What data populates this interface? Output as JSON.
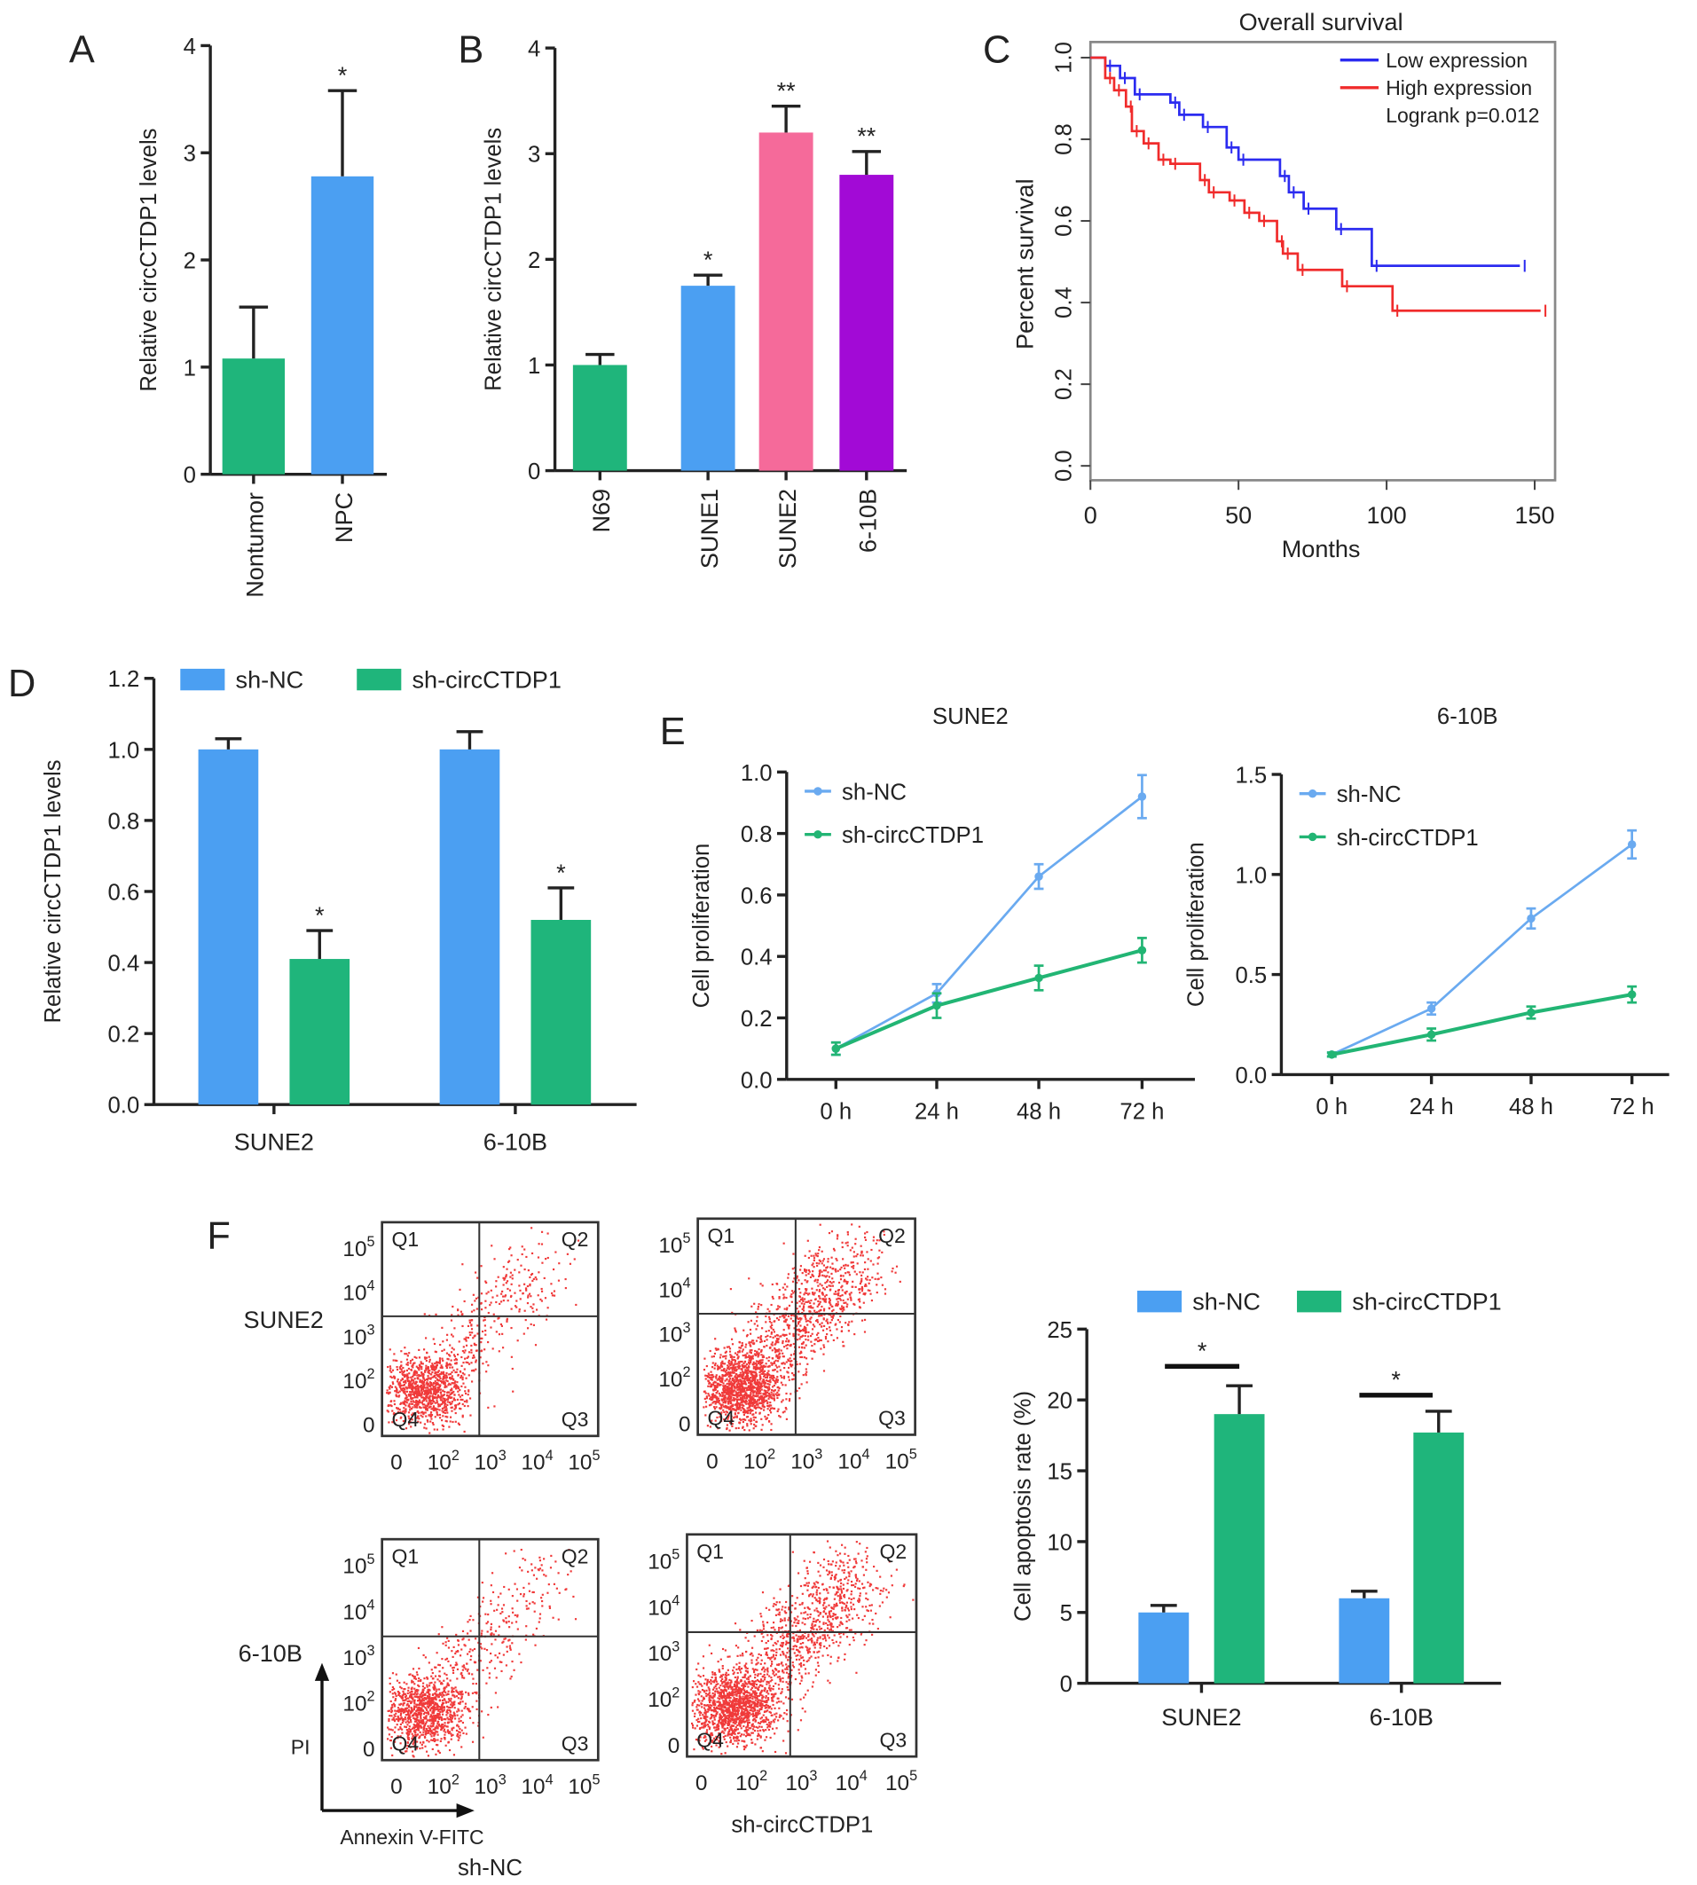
{
  "panel_labels": [
    "A",
    "B",
    "C",
    "D",
    "E",
    "F"
  ],
  "colors": {
    "green": "#1fb57b",
    "blue": "#4b9ff2",
    "pink": "#f56a9a",
    "purple": "#a20ad6",
    "km_low": "#2b2bf0",
    "km_high": "#f02b2b",
    "line_blue": "#6aaaf0",
    "line_green": "#22b574",
    "flow_red": "#f03a3a"
  },
  "chart_data": [
    {
      "id": "A",
      "type": "bar",
      "ylabel": "Relative circCTDP1 levels",
      "ylim": [
        0,
        4
      ],
      "yticks": [
        "0",
        "1",
        "2",
        "3",
        "4"
      ],
      "categories": [
        "Nontumor",
        "NPC"
      ],
      "values": [
        1.08,
        2.78
      ],
      "errors": [
        0.48,
        0.8
      ],
      "annotations": [
        "",
        "*"
      ],
      "colors": [
        "green",
        "blue"
      ]
    },
    {
      "id": "B",
      "type": "bar",
      "ylabel": "Relative circCTDP1 levels",
      "ylim": [
        0,
        4
      ],
      "yticks": [
        "0",
        "1",
        "2",
        "3",
        "4"
      ],
      "categories": [
        "N69",
        "SUNE1",
        "SUNE2",
        "6-10B"
      ],
      "values": [
        1.0,
        1.75,
        3.2,
        2.8
      ],
      "errors": [
        0.1,
        0.1,
        0.25,
        0.22
      ],
      "annotations": [
        "",
        "*",
        "**",
        "**"
      ],
      "colors": [
        "green",
        "blue",
        "pink",
        "purple"
      ]
    },
    {
      "id": "C",
      "type": "line",
      "title": "Overall survival",
      "xlabel": "Months",
      "ylabel": "Percent survival",
      "xlim": [
        0,
        150
      ],
      "ylim": [
        0,
        1
      ],
      "xticks": [
        "0",
        "50",
        "100",
        "150"
      ],
      "yticks": [
        "0.0",
        "0.2",
        "0.4",
        "0.6",
        "0.8",
        "1.0"
      ],
      "annotation": "Logrank p=0.012",
      "legend_position": "top-right",
      "series": [
        {
          "name": "Low expression",
          "color": "km_low",
          "points": [
            [
              0,
              1
            ],
            [
              5,
              0.98
            ],
            [
              10,
              0.95
            ],
            [
              15,
              0.91
            ],
            [
              27,
              0.89
            ],
            [
              30,
              0.86
            ],
            [
              38,
              0.83
            ],
            [
              46,
              0.78
            ],
            [
              50,
              0.75
            ],
            [
              64,
              0.71
            ],
            [
              67,
              0.67
            ],
            [
              72,
              0.63
            ],
            [
              83,
              0.58
            ],
            [
              95,
              0.49
            ],
            [
              145,
              0.49
            ]
          ]
        },
        {
          "name": "High expression",
          "color": "km_high",
          "points": [
            [
              0,
              1
            ],
            [
              5,
              0.95
            ],
            [
              8,
              0.92
            ],
            [
              12,
              0.88
            ],
            [
              14,
              0.82
            ],
            [
              18,
              0.79
            ],
            [
              23,
              0.75
            ],
            [
              27,
              0.74
            ],
            [
              37,
              0.7
            ],
            [
              40,
              0.67
            ],
            [
              47,
              0.65
            ],
            [
              52,
              0.62
            ],
            [
              57,
              0.6
            ],
            [
              63,
              0.55
            ],
            [
              65,
              0.52
            ],
            [
              70,
              0.48
            ],
            [
              85,
              0.44
            ],
            [
              102,
              0.38
            ],
            [
              152,
              0.38
            ]
          ]
        }
      ]
    },
    {
      "id": "D",
      "type": "bar",
      "ylabel": "Relative circCTDP1 levels",
      "ylim": [
        0,
        1.2
      ],
      "yticks": [
        "0.0",
        "0.2",
        "0.4",
        "0.6",
        "0.8",
        "1.0",
        "1.2"
      ],
      "categories": [
        "SUNE2",
        "6-10B"
      ],
      "legend_position": "top",
      "series": [
        {
          "name": "sh-NC",
          "color": "blue",
          "values": [
            1.0,
            1.0
          ],
          "errors": [
            0.03,
            0.05
          ],
          "annotations": [
            "",
            ""
          ]
        },
        {
          "name": "sh-circCTDP1",
          "color": "green",
          "values": [
            0.41,
            0.52
          ],
          "errors": [
            0.08,
            0.09
          ],
          "annotations": [
            "*",
            "*"
          ]
        }
      ]
    },
    {
      "id": "E1",
      "type": "line",
      "title": "SUNE2",
      "ylabel": "Cell proliferation",
      "ylim": [
        0,
        1
      ],
      "yticks": [
        "0.0",
        "0.2",
        "0.4",
        "0.6",
        "0.8",
        "1.0"
      ],
      "categories": [
        "0 h",
        "24 h",
        "48 h",
        "72 h"
      ],
      "legend_position": "top-left",
      "series": [
        {
          "name": "sh-NC",
          "color": "line_blue",
          "values": [
            0.1,
            0.28,
            0.66,
            0.92
          ],
          "errors": [
            0.02,
            0.03,
            0.04,
            0.07
          ]
        },
        {
          "name": "sh-circCTDP1",
          "color": "line_green",
          "values": [
            0.1,
            0.24,
            0.33,
            0.42
          ],
          "errors": [
            0.02,
            0.04,
            0.04,
            0.04
          ]
        }
      ]
    },
    {
      "id": "E2",
      "type": "line",
      "title": "6-10B",
      "ylabel": "Cell proliferation",
      "ylim": [
        0,
        1.5
      ],
      "yticks": [
        "0.0",
        "0.5",
        "1.0",
        "1.5"
      ],
      "categories": [
        "0 h",
        "24 h",
        "48 h",
        "72 h"
      ],
      "legend_position": "top-left",
      "series": [
        {
          "name": "sh-NC",
          "color": "line_blue",
          "values": [
            0.1,
            0.33,
            0.78,
            1.15
          ],
          "errors": [
            0.01,
            0.03,
            0.05,
            0.07
          ]
        },
        {
          "name": "sh-circCTDP1",
          "color": "line_green",
          "values": [
            0.1,
            0.2,
            0.31,
            0.4
          ],
          "errors": [
            0.01,
            0.03,
            0.03,
            0.04
          ]
        }
      ]
    },
    {
      "id": "F",
      "type": "bar",
      "ylabel": "Cell apoptosis rate (%)",
      "ylim": [
        0,
        25
      ],
      "yticks": [
        "0",
        "5",
        "10",
        "15",
        "20",
        "25"
      ],
      "categories": [
        "SUNE2",
        "6-10B"
      ],
      "legend_position": "top",
      "significance": [
        "*",
        "*"
      ],
      "series": [
        {
          "name": "sh-NC",
          "color": "blue",
          "values": [
            5.0,
            6.0
          ],
          "errors": [
            0.5,
            0.5
          ]
        },
        {
          "name": "sh-circCTDP1",
          "color": "green",
          "values": [
            19.0,
            17.7
          ],
          "errors": [
            2.0,
            1.5
          ]
        }
      ]
    }
  ],
  "flow": {
    "row_labels": [
      "SUNE2",
      "6-10B"
    ],
    "col_labels": [
      "sh-NC",
      "sh-circCTDP1"
    ],
    "quadrants": [
      "Q1",
      "Q2",
      "Q3",
      "Q4"
    ],
    "ticks": [
      "0",
      "10",
      "10",
      "10",
      "10"
    ],
    "tick_exponents": [
      "",
      "2",
      "3",
      "4",
      "5"
    ],
    "x_axis_label": "Annexin V-FITC",
    "y_axis_label": "PI",
    "type": "scatter"
  }
}
